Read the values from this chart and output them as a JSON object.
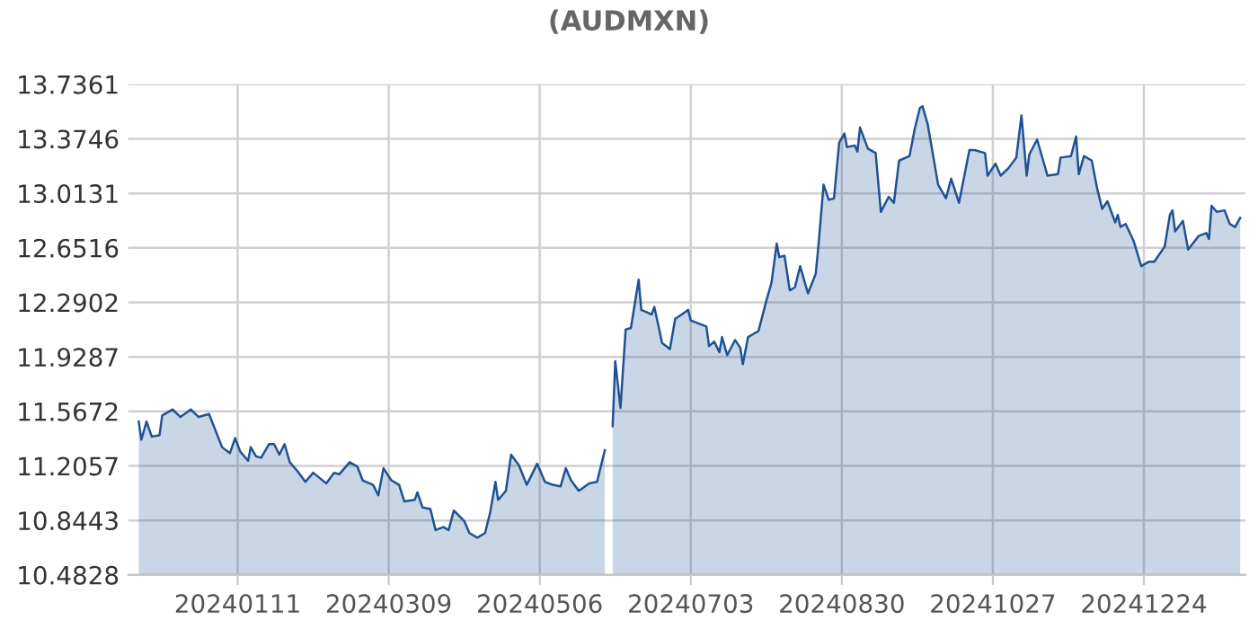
{
  "chart_data": {
    "type": "area",
    "title": "(AUDMXN)",
    "x": [
      "2023-12-04",
      "2023-12-05",
      "2023-12-07",
      "2023-12-09",
      "2023-12-12",
      "2023-12-13",
      "2023-12-17",
      "2023-12-20",
      "2023-12-24",
      "2023-12-27",
      "2023-12-31",
      "2024-01-05",
      "2024-01-08",
      "2024-01-10",
      "2024-01-12",
      "2024-01-15",
      "2024-01-16",
      "2024-01-18",
      "2024-01-20",
      "2024-01-23",
      "2024-01-25",
      "2024-01-27",
      "2024-01-29",
      "2024-01-31",
      "2024-02-03",
      "2024-02-06",
      "2024-02-09",
      "2024-02-14",
      "2024-02-17",
      "2024-02-19",
      "2024-02-23",
      "2024-02-26",
      "2024-02-28",
      "2024-03-03",
      "2024-03-05",
      "2024-03-07",
      "2024-03-10",
      "2024-03-13",
      "2024-03-15",
      "2024-03-19",
      "2024-03-20",
      "2024-03-22",
      "2024-03-25",
      "2024-03-27",
      "2024-03-30",
      "2024-04-01",
      "2024-04-03",
      "2024-04-07",
      "2024-04-09",
      "2024-04-12",
      "2024-04-15",
      "2024-04-17",
      "2024-04-19",
      "2024-04-20",
      "2024-04-23",
      "2024-04-25",
      "2024-04-28",
      "2024-05-01",
      "2024-05-05",
      "2024-05-08",
      "2024-05-11",
      "2024-05-14",
      "2024-05-16",
      "2024-05-18",
      "2024-05-21",
      "2024-05-25",
      "2024-05-28",
      "2024-05-31",
      "2024-06-01",
      "2024-06-03",
      "2024-06-04",
      "2024-06-06",
      "2024-06-08",
      "2024-06-10",
      "2024-06-13",
      "2024-06-14",
      "2024-06-18",
      "2024-06-19",
      "2024-06-22",
      "2024-06-25",
      "2024-06-27",
      "2024-07-02",
      "2024-07-03",
      "2024-07-09",
      "2024-07-10",
      "2024-07-12",
      "2024-07-14",
      "2024-07-15",
      "2024-07-17",
      "2024-07-20",
      "2024-07-22",
      "2024-07-23",
      "2024-07-25",
      "2024-07-27",
      "2024-07-29",
      "2024-08-01",
      "2024-08-03",
      "2024-08-05",
      "2024-08-06",
      "2024-08-08",
      "2024-08-10",
      "2024-08-12",
      "2024-08-14",
      "2024-08-17",
      "2024-08-20",
      "2024-08-21",
      "2024-08-23",
      "2024-08-25",
      "2024-08-27",
      "2024-08-29",
      "2024-08-31",
      "2024-09-01",
      "2024-09-04",
      "2024-09-05",
      "2024-09-06",
      "2024-09-09",
      "2024-09-12",
      "2024-09-14",
      "2024-09-17",
      "2024-09-19",
      "2024-09-21",
      "2024-09-25",
      "2024-09-27",
      "2024-09-29",
      "2024-09-30",
      "2024-10-02",
      "2024-10-06",
      "2024-10-09",
      "2024-10-11",
      "2024-10-14",
      "2024-10-18",
      "2024-10-20",
      "2024-10-24",
      "2024-10-25",
      "2024-10-28",
      "2024-10-30",
      "2024-11-02",
      "2024-11-05",
      "2024-11-07",
      "2024-11-09",
      "2024-11-10",
      "2024-11-13",
      "2024-11-17",
      "2024-11-21",
      "2024-11-22",
      "2024-11-26",
      "2024-11-28",
      "2024-11-29",
      "2024-12-01",
      "2024-12-04",
      "2024-12-06",
      "2024-12-08",
      "2024-12-10",
      "2024-12-13",
      "2024-12-14",
      "2024-12-15",
      "2024-12-17",
      "2024-12-20",
      "2024-12-23",
      "2024-12-26",
      "2024-12-28",
      "2025-01-01",
      "2025-01-03",
      "2025-01-04",
      "2025-01-05",
      "2025-01-08",
      "2025-01-10",
      "2025-01-14",
      "2025-01-17",
      "2025-01-18",
      "2025-01-19",
      "2025-01-21",
      "2025-01-24",
      "2025-01-26",
      "2025-01-28",
      "2025-01-30"
    ],
    "series": [
      {
        "color": "#1f5294",
        "values": [
          11.5,
          11.38,
          11.5,
          11.4,
          11.41,
          11.54,
          11.58,
          11.53,
          11.58,
          11.53,
          11.55,
          11.33,
          11.29,
          11.39,
          11.3,
          11.24,
          11.33,
          11.27,
          11.26,
          11.35,
          11.35,
          11.28,
          11.35,
          11.23,
          11.17,
          11.1,
          11.16,
          11.09,
          11.16,
          11.15,
          11.23,
          11.2,
          11.11,
          11.08,
          11.01,
          11.19,
          11.11,
          11.08,
          10.97,
          10.98,
          11.03,
          10.93,
          10.92,
          10.78,
          10.8,
          10.78,
          10.91,
          10.84,
          10.76,
          10.73,
          10.76,
          10.9,
          11.1,
          10.98,
          11.04,
          11.28,
          11.21,
          11.08,
          11.22,
          11.1,
          11.08,
          11.07,
          11.19,
          11.11,
          11.04,
          11.09,
          11.1,
          11.31,
          null,
          11.47,
          11.9,
          11.59,
          12.11,
          12.12,
          12.44,
          12.24,
          12.21,
          12.26,
          12.02,
          11.98,
          12.18,
          12.24,
          12.17,
          12.13,
          12.0,
          12.03,
          11.96,
          12.06,
          11.94,
          12.04,
          11.99,
          11.88,
          12.06,
          12.08,
          12.1,
          12.3,
          12.42,
          12.68,
          12.59,
          12.6,
          12.37,
          12.39,
          12.53,
          12.35,
          12.48,
          12.66,
          13.07,
          12.97,
          12.98,
          13.35,
          13.41,
          13.32,
          13.33,
          13.29,
          13.45,
          13.31,
          13.28,
          12.89,
          12.99,
          12.95,
          13.23,
          13.26,
          13.44,
          13.58,
          13.59,
          13.47,
          13.07,
          12.98,
          13.11,
          12.95,
          13.3,
          13.3,
          13.28,
          13.13,
          13.21,
          13.13,
          13.18,
          13.25,
          13.53,
          13.13,
          13.27,
          13.37,
          13.13,
          13.14,
          13.25,
          13.26,
          13.39,
          13.14,
          13.26,
          13.23,
          13.05,
          12.91,
          12.96,
          12.82,
          12.87,
          12.79,
          12.81,
          12.7,
          12.53,
          12.56,
          12.56,
          12.66,
          12.87,
          12.9,
          12.76,
          12.83,
          12.64,
          12.73,
          12.75,
          12.71,
          12.93,
          12.89,
          12.9,
          12.81,
          12.79,
          12.85
        ]
      }
    ],
    "xlim": [
      "2023-11-30",
      "2025-02-01"
    ],
    "xticks": [
      {
        "value": "2024-01-11",
        "label": "20240111"
      },
      {
        "value": "2024-03-09",
        "label": "20240309"
      },
      {
        "value": "2024-05-06",
        "label": "20240506"
      },
      {
        "value": "2024-07-03",
        "label": "20240703"
      },
      {
        "value": "2024-08-30",
        "label": "20240830"
      },
      {
        "value": "2024-10-27",
        "label": "20241027"
      },
      {
        "value": "2024-12-24",
        "label": "20241224"
      }
    ],
    "ylim": [
      10.4828,
      13.7361
    ],
    "yticks": [
      10.4828,
      10.8443,
      11.2057,
      11.5672,
      11.9287,
      12.2902,
      12.6516,
      13.0131,
      13.3746,
      13.7361
    ],
    "grid": true
  }
}
